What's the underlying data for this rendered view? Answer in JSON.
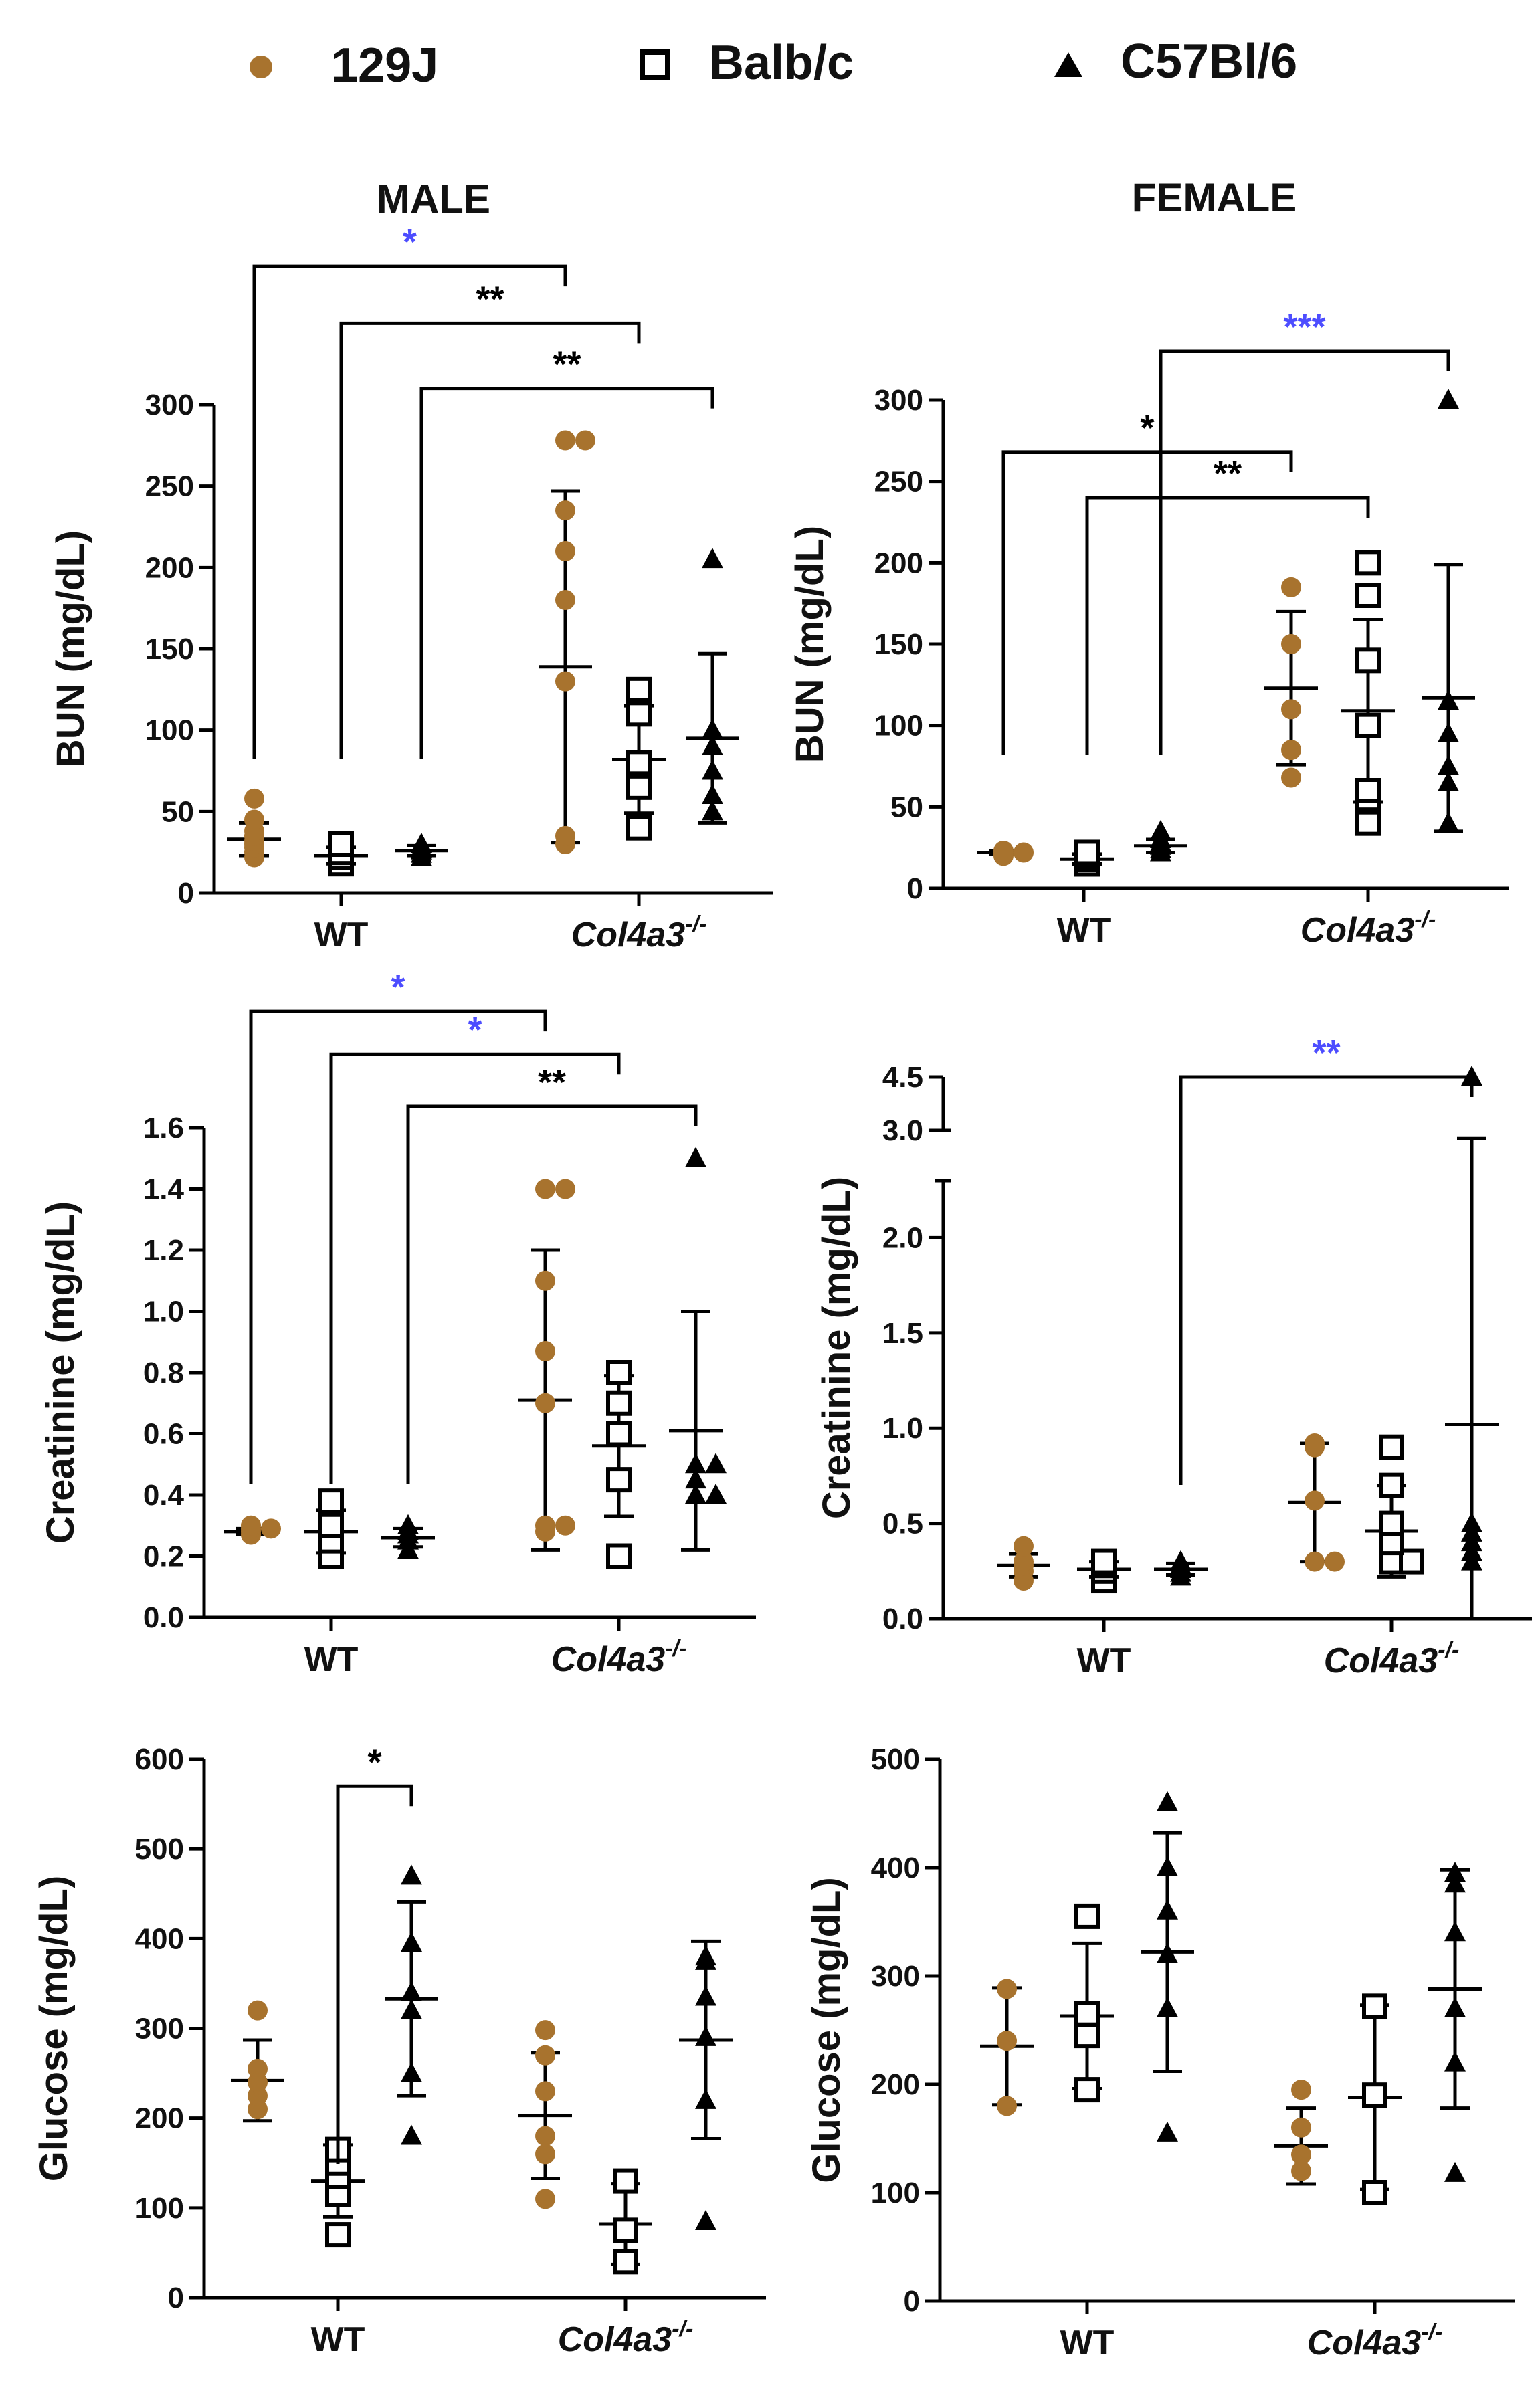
{
  "legend": {
    "items": [
      {
        "key": "129J",
        "label": "129J",
        "marker": "circle"
      },
      {
        "key": "Balb/c",
        "label": "Balb/c",
        "marker": "square"
      },
      {
        "key": "C57Bl/6",
        "label": "C57Bl/6",
        "marker": "triangle"
      }
    ]
  },
  "titles": {
    "male": "MALE",
    "female": "FEMALE"
  },
  "colors": {
    "129J": "#a8732e",
    "Balb/c": "#000000",
    "C57Bl/6": "#000000",
    "sig_black": "#000000",
    "sig_blue": "#4d4dff"
  },
  "chart_data": [
    {
      "id": "male-bun",
      "type": "scatter",
      "sex": "MALE",
      "ylabel": "BUN (mg/dL)",
      "ylim": [
        0,
        300
      ],
      "yticks": [
        0,
        50,
        100,
        150,
        200,
        250,
        300
      ],
      "ytick_labels": [
        "0",
        "50",
        "100",
        "150",
        "200",
        "250",
        "300"
      ],
      "groups": [
        {
          "label": "WT",
          "italic": false,
          "sup": ""
        },
        {
          "label": "Col4a3",
          "italic": true,
          "sup": "-/-"
        }
      ],
      "series": [
        {
          "strain": "129J",
          "group": "WT",
          "values": [
            22,
            25,
            28,
            30,
            32,
            35,
            38,
            45,
            58
          ],
          "mean": 33,
          "sd": 10
        },
        {
          "strain": "Balb/c",
          "group": "WT",
          "values": [
            18,
            22,
            25,
            30
          ],
          "mean": 23,
          "sd": 5
        },
        {
          "strain": "C57Bl/6",
          "group": "WT",
          "values": [
            22,
            24,
            26,
            27,
            28,
            30
          ],
          "mean": 26,
          "sd": 3
        },
        {
          "strain": "129J",
          "group": "Col4a3",
          "values": [
            30,
            35,
            130,
            180,
            210,
            235,
            278,
            278
          ],
          "mean": 139,
          "sd": 108
        },
        {
          "strain": "Balb/c",
          "group": "Col4a3",
          "values": [
            40,
            65,
            80,
            110,
            125
          ],
          "mean": 82,
          "sd": 33
        },
        {
          "strain": "C57Bl/6",
          "group": "Col4a3",
          "values": [
            50,
            60,
            75,
            90,
            100,
            205
          ],
          "mean": 95,
          "sd": 52
        }
      ],
      "significance": [
        {
          "label": "*",
          "color": "blue",
          "from": "129J WT",
          "to": "129J Col4a3-/-",
          "level": 385
        },
        {
          "label": "**",
          "color": "black",
          "from": "Balb/c WT",
          "to": "Balb/c Col4a3-/-",
          "level": 350
        },
        {
          "label": "**",
          "color": "black",
          "from": "C57Bl/6 WT",
          "to": "C57Bl/6 Col4a3-/-",
          "level": 310
        }
      ]
    },
    {
      "id": "female-bun",
      "type": "scatter",
      "sex": "FEMALE",
      "ylabel": "BUN (mg/dL)",
      "ylim": [
        0,
        300
      ],
      "yticks": [
        0,
        50,
        100,
        150,
        200,
        250,
        300
      ],
      "ytick_labels": [
        "0",
        "50",
        "100",
        "150",
        "200",
        "250",
        "300"
      ],
      "groups": [
        {
          "label": "WT",
          "italic": false,
          "sup": ""
        },
        {
          "label": "Col4a3",
          "italic": true,
          "sup": "-/-"
        }
      ],
      "series": [
        {
          "strain": "129J",
          "group": "WT",
          "values": [
            20,
            21,
            22,
            22,
            23
          ],
          "mean": 22,
          "sd": 1
        },
        {
          "strain": "Balb/c",
          "group": "WT",
          "values": [
            15,
            18,
            20,
            22
          ],
          "mean": 18,
          "sd": 3
        },
        {
          "strain": "C57Bl/6",
          "group": "WT",
          "values": [
            22,
            24,
            26,
            28,
            30,
            35
          ],
          "mean": 26,
          "sd": 4
        },
        {
          "strain": "129J",
          "group": "Col4a3",
          "values": [
            68,
            85,
            110,
            150,
            185
          ],
          "mean": 123,
          "sd": 47
        },
        {
          "strain": "Balb/c",
          "group": "Col4a3",
          "values": [
            40,
            55,
            60,
            100,
            140,
            180,
            200
          ],
          "mean": 109,
          "sd": 56
        },
        {
          "strain": "C57Bl/6",
          "group": "Col4a3",
          "values": [
            40,
            65,
            75,
            95,
            115,
            300
          ],
          "mean": 117,
          "sd": 82
        }
      ],
      "significance": [
        {
          "label": "*",
          "color": "black",
          "from": "129J WT",
          "to": "129J Col4a3-/-",
          "level": 268
        },
        {
          "label": "**",
          "color": "black",
          "from": "Balb/c WT",
          "to": "Balb/c Col4a3-/-",
          "level": 240
        },
        {
          "label": "***",
          "color": "blue",
          "from": "C57Bl/6 WT",
          "to": "C57Bl/6 Col4a3-/-",
          "level": 330
        }
      ]
    },
    {
      "id": "male-creatinine",
      "type": "scatter",
      "sex": "MALE",
      "ylabel": "Creatinine (mg/dL)",
      "ylim": [
        0,
        1.6
      ],
      "yticks": [
        0,
        0.2,
        0.4,
        0.6,
        0.8,
        1.0,
        1.2,
        1.4,
        1.6
      ],
      "ytick_labels": [
        "0.0",
        "0.2",
        "0.4",
        "0.6",
        "0.8",
        "1.0",
        "1.2",
        "1.4",
        "1.6"
      ],
      "groups": [
        {
          "label": "WT",
          "italic": false,
          "sup": ""
        },
        {
          "label": "Col4a3",
          "italic": true,
          "sup": "-/-"
        }
      ],
      "series": [
        {
          "strain": "129J",
          "group": "WT",
          "values": [
            0.27,
            0.28,
            0.29,
            0.29,
            0.3
          ],
          "mean": 0.28,
          "sd": 0.01
        },
        {
          "strain": "Balb/c",
          "group": "WT",
          "values": [
            0.2,
            0.25,
            0.3,
            0.38
          ],
          "mean": 0.28,
          "sd": 0.07
        },
        {
          "strain": "C57Bl/6",
          "group": "WT",
          "values": [
            0.22,
            0.25,
            0.27,
            0.28,
            0.3
          ],
          "mean": 0.26,
          "sd": 0.03
        },
        {
          "strain": "129J",
          "group": "Col4a3",
          "values": [
            0.28,
            0.3,
            0.3,
            0.7,
            0.87,
            1.1,
            1.4,
            1.4
          ],
          "mean": 0.71,
          "sd": 0.49
        },
        {
          "strain": "Balb/c",
          "group": "Col4a3",
          "values": [
            0.2,
            0.45,
            0.6,
            0.7,
            0.8
          ],
          "mean": 0.56,
          "sd": 0.23
        },
        {
          "strain": "C57Bl/6",
          "group": "Col4a3",
          "values": [
            0.4,
            0.4,
            0.45,
            0.5,
            0.5,
            1.5
          ],
          "mean": 0.61,
          "sd": 0.39
        }
      ],
      "significance": [
        {
          "label": "*",
          "color": "blue",
          "from": "129J WT",
          "to": "129J Col4a3-/-",
          "level": 1.98
        },
        {
          "label": "*",
          "color": "blue",
          "from": "Balb/c WT",
          "to": "Balb/c Col4a3-/-",
          "level": 1.84
        },
        {
          "label": "**",
          "color": "black",
          "from": "C57Bl/6 WT",
          "to": "C57Bl/6 Col4a3-/-",
          "level": 1.67
        }
      ]
    },
    {
      "id": "female-creatinine",
      "type": "scatter",
      "sex": "FEMALE",
      "ylabel": "Creatinine (mg/dL)",
      "ylim": [
        0,
        4.5
      ],
      "axis_break": {
        "from": 2.3,
        "to": 3.0
      },
      "yticks": [
        0,
        0.5,
        1.0,
        1.5,
        2.0,
        3.0,
        4.5
      ],
      "ytick_labels": [
        "0.0",
        "0.5",
        "1.0",
        "1.5",
        "2.0",
        "3.0",
        "4.5"
      ],
      "groups": [
        {
          "label": "WT",
          "italic": false,
          "sup": ""
        },
        {
          "label": "Col4a3",
          "italic": true,
          "sup": "-/-"
        }
      ],
      "series": [
        {
          "strain": "129J",
          "group": "WT",
          "values": [
            0.2,
            0.25,
            0.28,
            0.3,
            0.38
          ],
          "mean": 0.28,
          "sd": 0.06
        },
        {
          "strain": "Balb/c",
          "group": "WT",
          "values": [
            0.2,
            0.25,
            0.28,
            0.3
          ],
          "mean": 0.26,
          "sd": 0.04
        },
        {
          "strain": "C57Bl/6",
          "group": "WT",
          "values": [
            0.22,
            0.24,
            0.26,
            0.28,
            0.3
          ],
          "mean": 0.26,
          "sd": 0.03
        },
        {
          "strain": "129J",
          "group": "Col4a3",
          "values": [
            0.3,
            0.3,
            0.62,
            0.9,
            0.92
          ],
          "mean": 0.61,
          "sd": 0.31
        },
        {
          "strain": "Balb/c",
          "group": "Col4a3",
          "values": [
            0.3,
            0.3,
            0.4,
            0.5,
            0.7,
            0.9
          ],
          "mean": 0.46,
          "sd": 0.24
        },
        {
          "strain": "C57Bl/6",
          "group": "Col4a3",
          "values": [
            0.3,
            0.35,
            0.4,
            0.45,
            0.5,
            4.5
          ],
          "mean": 1.02,
          "sd": 1.75
        }
      ],
      "significance": [
        {
          "label": "**",
          "color": "blue",
          "from": "C57Bl/6 WT",
          "to": "C57Bl/6 Col4a3-/-",
          "level": 4.65
        }
      ]
    },
    {
      "id": "male-glucose",
      "type": "scatter",
      "sex": "MALE",
      "ylabel": "Glucose (mg/dL)",
      "ylim": [
        0,
        600
      ],
      "yticks": [
        0,
        100,
        200,
        300,
        400,
        500,
        600
      ],
      "ytick_labels": [
        "0",
        "100",
        "200",
        "300",
        "400",
        "500",
        "600"
      ],
      "groups": [
        {
          "label": "WT",
          "italic": false,
          "sup": ""
        },
        {
          "label": "Col4a3",
          "italic": true,
          "sup": "-/-"
        }
      ],
      "series": [
        {
          "strain": "129J",
          "group": "WT",
          "values": [
            210,
            225,
            240,
            255,
            320
          ],
          "mean": 242,
          "sd": 45
        },
        {
          "strain": "Balb/c",
          "group": "WT",
          "values": [
            70,
            115,
            135,
            150,
            165
          ],
          "mean": 130,
          "sd": 40
        },
        {
          "strain": "C57Bl/6",
          "group": "WT",
          "values": [
            180,
            250,
            320,
            340,
            395,
            470
          ],
          "mean": 333,
          "sd": 108
        },
        {
          "strain": "129J",
          "group": "Col4a3",
          "values": [
            110,
            160,
            180,
            230,
            270,
            298
          ],
          "mean": 203,
          "sd": 70
        },
        {
          "strain": "Balb/c",
          "group": "Col4a3",
          "values": [
            40,
            75,
            130
          ],
          "mean": 82,
          "sd": 45
        },
        {
          "strain": "C57Bl/6",
          "group": "Col4a3",
          "values": [
            85,
            220,
            290,
            335,
            375,
            380
          ],
          "mean": 287,
          "sd": 110
        }
      ],
      "significance": [
        {
          "label": "*",
          "color": "black",
          "from": "Balb/c WT",
          "to": "C57Bl/6 WT",
          "level": 570
        }
      ]
    },
    {
      "id": "female-glucose",
      "type": "scatter",
      "sex": "FEMALE",
      "ylabel": "Glucose (mg/dL)",
      "ylim": [
        0,
        500
      ],
      "yticks": [
        0,
        100,
        200,
        300,
        400,
        500
      ],
      "ytick_labels": [
        "0",
        "100",
        "200",
        "300",
        "400",
        "500"
      ],
      "groups": [
        {
          "label": "WT",
          "italic": false,
          "sup": ""
        },
        {
          "label": "Col4a3",
          "italic": true,
          "sup": "-/-"
        }
      ],
      "series": [
        {
          "strain": "129J",
          "group": "WT",
          "values": [
            180,
            240,
            288
          ],
          "mean": 235,
          "sd": 54
        },
        {
          "strain": "Balb/c",
          "group": "WT",
          "values": [
            195,
            245,
            265,
            355
          ],
          "mean": 263,
          "sd": 67
        },
        {
          "strain": "C57Bl/6",
          "group": "WT",
          "values": [
            155,
            270,
            320,
            360,
            400,
            460
          ],
          "mean": 322,
          "sd": 110
        },
        {
          "strain": "129J",
          "group": "Col4a3",
          "values": [
            120,
            135,
            160,
            195
          ],
          "mean": 143,
          "sd": 35
        },
        {
          "strain": "Balb/c",
          "group": "Col4a3",
          "values": [
            100,
            190,
            272
          ],
          "mean": 188,
          "sd": 85
        },
        {
          "strain": "C57Bl/6",
          "group": "Col4a3",
          "values": [
            118,
            220,
            270,
            340,
            385,
            395
          ],
          "mean": 288,
          "sd": 110
        }
      ],
      "significance": []
    }
  ]
}
